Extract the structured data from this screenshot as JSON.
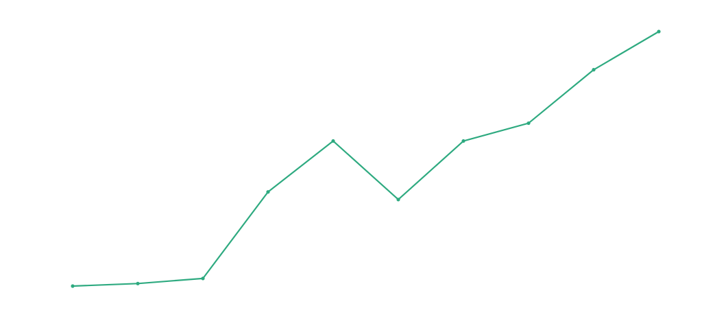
{
  "chart_data": {
    "type": "line",
    "categories": [
      null,
      null,
      null,
      null,
      null,
      null,
      null,
      null,
      null,
      null
    ],
    "values": [
      0,
      1,
      3,
      37,
      57,
      34,
      57,
      64,
      85,
      100
    ],
    "color": "#2eaa80",
    "markers": true,
    "ylim": [
      0,
      100
    ]
  }
}
